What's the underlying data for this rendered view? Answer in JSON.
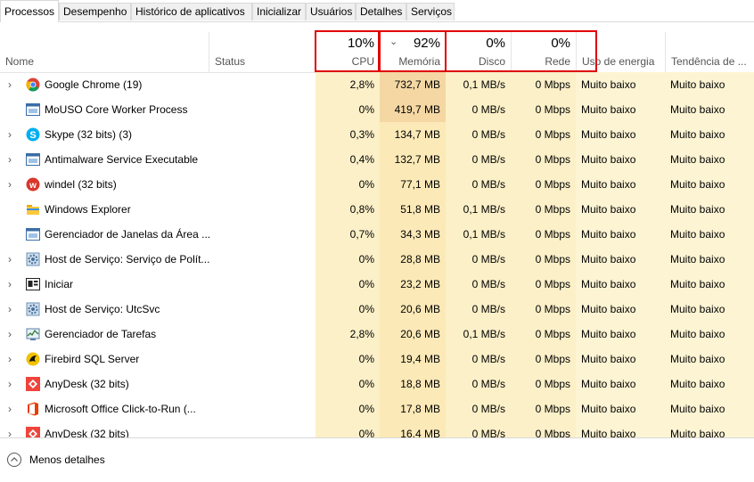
{
  "tabs": [
    "Processos",
    "Desempenho",
    "Histórico de aplicativos",
    "Inicializar",
    "Usuários",
    "Detalhes",
    "Serviços"
  ],
  "columns": {
    "name": "Nome",
    "status": "Status",
    "cpu": {
      "pct": "10%",
      "label": "CPU"
    },
    "memory": {
      "pct": "92%",
      "label": "Memória"
    },
    "disk": {
      "pct": "0%",
      "label": "Disco"
    },
    "network": {
      "pct": "0%",
      "label": "Rede"
    },
    "power": "Uso de energia",
    "trend": "Tendência de ..."
  },
  "processes": [
    {
      "name": "Google Chrome (19)",
      "expandable": true,
      "icon": "chrome-icon",
      "cpu": "2,8%",
      "mem": "732,7 MB",
      "disk": "0,1 MB/s",
      "net": "0 Mbps",
      "power": "Muito baixo",
      "trend": "Muito baixo"
    },
    {
      "name": "MoUSO Core Worker Process",
      "expandable": false,
      "icon": "window-app-icon",
      "cpu": "0%",
      "mem": "419,7 MB",
      "disk": "0 MB/s",
      "net": "0 Mbps",
      "power": "Muito baixo",
      "trend": "Muito baixo"
    },
    {
      "name": "Skype (32 bits) (3)",
      "expandable": true,
      "icon": "skype-icon",
      "cpu": "0,3%",
      "mem": "134,7 MB",
      "disk": "0 MB/s",
      "net": "0 Mbps",
      "power": "Muito baixo",
      "trend": "Muito baixo"
    },
    {
      "name": "Antimalware Service Executable",
      "expandable": true,
      "icon": "window-app-icon",
      "cpu": "0,4%",
      "mem": "132,7 MB",
      "disk": "0 MB/s",
      "net": "0 Mbps",
      "power": "Muito baixo",
      "trend": "Muito baixo"
    },
    {
      "name": "windel (32 bits)",
      "expandable": true,
      "icon": "windel-icon",
      "cpu": "0%",
      "mem": "77,1 MB",
      "disk": "0 MB/s",
      "net": "0 Mbps",
      "power": "Muito baixo",
      "trend": "Muito baixo"
    },
    {
      "name": "Windows Explorer",
      "expandable": false,
      "icon": "folder-icon",
      "cpu": "0,8%",
      "mem": "51,8 MB",
      "disk": "0,1 MB/s",
      "net": "0 Mbps",
      "power": "Muito baixo",
      "trend": "Muito baixo"
    },
    {
      "name": "Gerenciador de Janelas da Área ...",
      "expandable": false,
      "icon": "window-app-icon",
      "cpu": "0,7%",
      "mem": "34,3 MB",
      "disk": "0,1 MB/s",
      "net": "0 Mbps",
      "power": "Muito baixo",
      "trend": "Muito baixo"
    },
    {
      "name": "Host de Serviço: Serviço de Polít...",
      "expandable": true,
      "icon": "gear-icon",
      "cpu": "0%",
      "mem": "28,8 MB",
      "disk": "0 MB/s",
      "net": "0 Mbps",
      "power": "Muito baixo",
      "trend": "Muito baixo"
    },
    {
      "name": "Iniciar",
      "expandable": true,
      "icon": "start-icon",
      "cpu": "0%",
      "mem": "23,2 MB",
      "disk": "0 MB/s",
      "net": "0 Mbps",
      "power": "Muito baixo",
      "trend": "Muito baixo"
    },
    {
      "name": "Host de Serviço: UtcSvc",
      "expandable": true,
      "icon": "gear-icon",
      "cpu": "0%",
      "mem": "20,6 MB",
      "disk": "0 MB/s",
      "net": "0 Mbps",
      "power": "Muito baixo",
      "trend": "Muito baixo"
    },
    {
      "name": "Gerenciador de Tarefas",
      "expandable": true,
      "icon": "task-manager-icon",
      "cpu": "2,8%",
      "mem": "20,6 MB",
      "disk": "0,1 MB/s",
      "net": "0 Mbps",
      "power": "Muito baixo",
      "trend": "Muito baixo"
    },
    {
      "name": "Firebird SQL Server",
      "expandable": true,
      "icon": "firebird-icon",
      "cpu": "0%",
      "mem": "19,4 MB",
      "disk": "0 MB/s",
      "net": "0 Mbps",
      "power": "Muito baixo",
      "trend": "Muito baixo"
    },
    {
      "name": "AnyDesk (32 bits)",
      "expandable": true,
      "icon": "anydesk-icon",
      "cpu": "0%",
      "mem": "18,8 MB",
      "disk": "0 MB/s",
      "net": "0 Mbps",
      "power": "Muito baixo",
      "trend": "Muito baixo"
    },
    {
      "name": "Microsoft Office Click-to-Run (...",
      "expandable": true,
      "icon": "office-icon",
      "cpu": "0%",
      "mem": "17,8 MB",
      "disk": "0 MB/s",
      "net": "0 Mbps",
      "power": "Muito baixo",
      "trend": "Muito baixo"
    },
    {
      "name": "AnyDesk (32 bits)",
      "expandable": true,
      "icon": "anydesk-icon",
      "cpu": "0%",
      "mem": "16,4 MB",
      "disk": "0 MB/s",
      "net": "0 Mbps",
      "power": "Muito baixo",
      "trend": "Muito baixo"
    }
  ],
  "footer": {
    "label": "Menos detalhes"
  },
  "colors": {
    "highlight_box": "#e00000",
    "cpu_bg": "#fcf0c8",
    "mem_bg_high": "#f4d7a3",
    "mem_bg": "#fbe9b7"
  }
}
